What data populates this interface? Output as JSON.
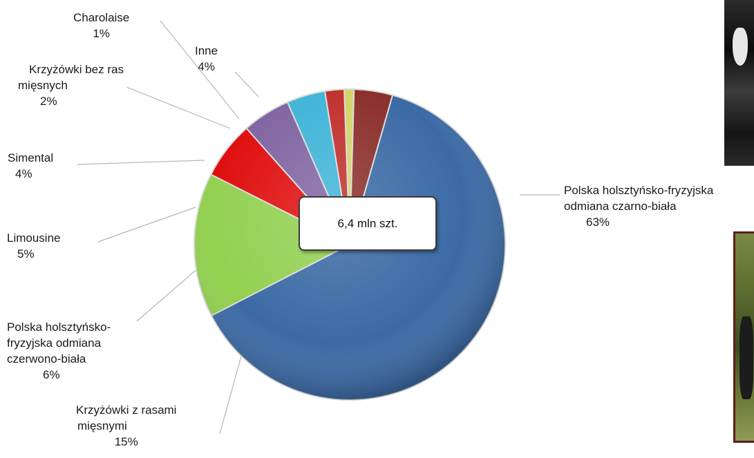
{
  "chart_data": {
    "type": "pie",
    "total_label": "6,4 mln szt.",
    "slices": [
      {
        "name_lines": [
          "Polska holsztyńsko-fryzyjska",
          "odmiana czarno-biała"
        ],
        "pct_label": "63%",
        "value": 63,
        "color": "#3b6aa5"
      },
      {
        "name_lines": [
          "Krzyżówki z rasami",
          "mięsnymi"
        ],
        "pct_label": "15%",
        "value": 15,
        "color": "#92d050"
      },
      {
        "name_lines": [
          "Polska holsztyńsko-",
          "fryzyjska odmiana",
          "czerwono-biała"
        ],
        "pct_label": "6%",
        "value": 6,
        "color": "#e00d0d"
      },
      {
        "name_lines": [
          "Limousine"
        ],
        "pct_label": "5%",
        "value": 5,
        "color": "#8064a2"
      },
      {
        "name_lines": [
          "Simental"
        ],
        "pct_label": "4%",
        "value": 4,
        "color": "#3fb4d8"
      },
      {
        "name_lines": [
          "Krzyżówki bez ras",
          "mięsnych"
        ],
        "pct_label": "2%",
        "value": 2,
        "color": "#c0302c"
      },
      {
        "name_lines": [
          "Charolaise"
        ],
        "pct_label": "1%",
        "value": 1,
        "color": "#d4d46a"
      },
      {
        "name_lines": [
          "Inne"
        ],
        "pct_label": "4%",
        "value": 4,
        "color": "#8b2f2b"
      }
    ]
  }
}
